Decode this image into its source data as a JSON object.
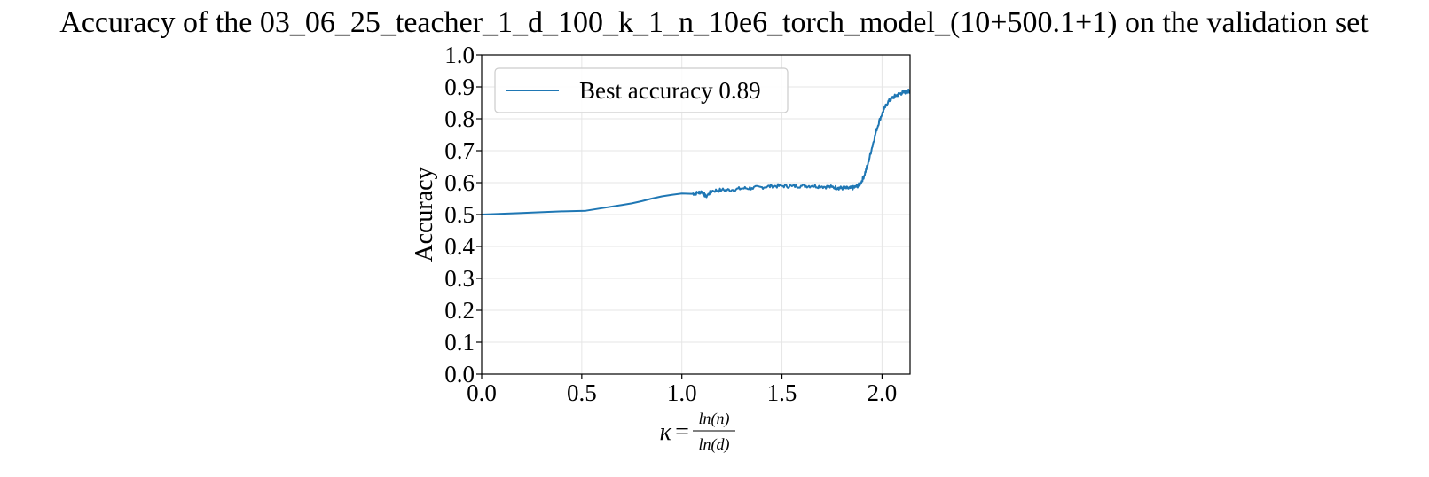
{
  "chart_data": {
    "type": "line",
    "title": "Accuracy of the 03_06_25_teacher_1_d_100_k_1_n_10e6_torch_model_(10+500.1+1) on the validation set",
    "xlabel": {
      "lhs": "κ",
      "eq": "=",
      "numerator": "ln(n)",
      "denominator": "ln(d)"
    },
    "ylabel": "Accuracy",
    "xlim": [
      0.0,
      2.14
    ],
    "ylim": [
      0.0,
      1.0
    ],
    "xticks": [
      0.0,
      0.5,
      1.0,
      1.5,
      2.0
    ],
    "xtick_labels": [
      "0.0",
      "0.5",
      "1.0",
      "1.5",
      "2.0"
    ],
    "yticks": [
      0.0,
      0.1,
      0.2,
      0.3,
      0.4,
      0.5,
      0.6,
      0.7,
      0.8,
      0.9,
      1.0
    ],
    "ytick_labels": [
      "0.0",
      "0.1",
      "0.2",
      "0.3",
      "0.4",
      "0.5",
      "0.6",
      "0.7",
      "0.8",
      "0.9",
      "1.0"
    ],
    "grid": true,
    "legend_position": "top-left",
    "series": [
      {
        "name": "Best accuracy 0.89",
        "color": "#1f77b4",
        "x": [
          0.0,
          0.2,
          0.4,
          0.52,
          0.6,
          0.7,
          0.75,
          0.8,
          0.85,
          0.9,
          0.95,
          1.0,
          1.05,
          1.08,
          1.1,
          1.12,
          1.15,
          1.2,
          1.25,
          1.3,
          1.35,
          1.4,
          1.45,
          1.5,
          1.55,
          1.6,
          1.65,
          1.7,
          1.75,
          1.78,
          1.8,
          1.83,
          1.85,
          1.87,
          1.89,
          1.91,
          1.93,
          1.95,
          1.97,
          1.99,
          2.01,
          2.03,
          2.05,
          2.07,
          2.09,
          2.11,
          2.13,
          2.14
        ],
        "y": [
          0.5,
          0.505,
          0.51,
          0.512,
          0.52,
          0.53,
          0.535,
          0.542,
          0.55,
          0.557,
          0.562,
          0.566,
          0.565,
          0.568,
          0.572,
          0.556,
          0.574,
          0.577,
          0.577,
          0.582,
          0.583,
          0.586,
          0.589,
          0.59,
          0.589,
          0.59,
          0.59,
          0.588,
          0.586,
          0.584,
          0.583,
          0.582,
          0.583,
          0.587,
          0.595,
          0.62,
          0.66,
          0.71,
          0.76,
          0.8,
          0.83,
          0.853,
          0.865,
          0.873,
          0.879,
          0.883,
          0.886,
          0.887
        ]
      }
    ]
  }
}
